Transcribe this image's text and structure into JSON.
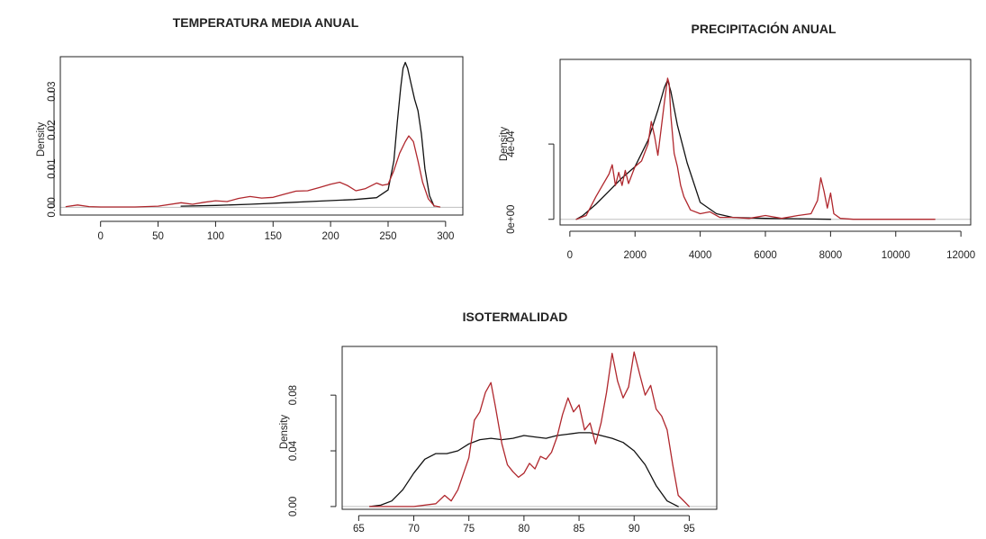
{
  "colors": {
    "black_series": "#111111",
    "red_series": "#b0272d",
    "zero_line": "#bfbfbf"
  },
  "chart_data": [
    {
      "type": "line",
      "title": "TEMPERATURA MEDIA ANUAL",
      "ylabel": "Density",
      "xlim": [
        -35,
        315
      ],
      "ylim": [
        -0.002,
        0.039
      ],
      "x_ticks": [
        0,
        50,
        100,
        150,
        200,
        250,
        300
      ],
      "x_tick_labels": [
        "0",
        "50",
        "100",
        "150",
        "200",
        "250",
        "300"
      ],
      "y_ticks": [
        0.0,
        0.01,
        0.02,
        0.03
      ],
      "y_tick_labels": [
        "0.00",
        "0.01",
        "0.02",
        "0.03"
      ],
      "series": [
        {
          "color": "#111111",
          "x": [
            70,
            100,
            130,
            160,
            190,
            220,
            240,
            250,
            255,
            258,
            261,
            263,
            265,
            267,
            270,
            273,
            276,
            279,
            282,
            286,
            290
          ],
          "y": [
            0.0003,
            0.0005,
            0.0008,
            0.0012,
            0.0016,
            0.002,
            0.0025,
            0.0045,
            0.012,
            0.022,
            0.031,
            0.036,
            0.0375,
            0.036,
            0.032,
            0.028,
            0.025,
            0.019,
            0.01,
            0.003,
            0.0003
          ]
        },
        {
          "color": "#b0272d",
          "x": [
            -30,
            -20,
            -10,
            0,
            30,
            50,
            70,
            80,
            90,
            100,
            110,
            120,
            130,
            140,
            150,
            160,
            170,
            180,
            190,
            200,
            208,
            215,
            222,
            230,
            240,
            245,
            250,
            255,
            260,
            265,
            268,
            272,
            276,
            280,
            285,
            290,
            295
          ],
          "y": [
            0.0002,
            0.0006,
            0.0002,
            0.0001,
            0.0001,
            0.0003,
            0.0012,
            0.0008,
            0.0013,
            0.0017,
            0.0015,
            0.0023,
            0.0028,
            0.0024,
            0.0026,
            0.0034,
            0.0042,
            0.0043,
            0.0051,
            0.006,
            0.0065,
            0.0056,
            0.0043,
            0.0048,
            0.0063,
            0.0057,
            0.006,
            0.0095,
            0.014,
            0.017,
            0.0185,
            0.017,
            0.012,
            0.0065,
            0.0022,
            0.0004,
            0.0001
          ]
        }
      ]
    },
    {
      "type": "line",
      "title": "PRECIPITACIÓN ANUAL",
      "ylabel": "Density",
      "xlim": [
        -300,
        12300
      ],
      "ylim": [
        -3e-05,
        0.00085
      ],
      "x_ticks": [
        0,
        2000,
        4000,
        6000,
        8000,
        10000,
        12000
      ],
      "x_tick_labels": [
        "0",
        "2000",
        "4000",
        "6000",
        "8000",
        "10000",
        "12000"
      ],
      "y_ticks": [
        0,
        0.0004
      ],
      "y_tick_labels": [
        "0e+00",
        "4e-04"
      ],
      "series": [
        {
          "color": "#111111",
          "x": [
            200,
            400,
            800,
            1200,
            1600,
            2000,
            2400,
            2700,
            2900,
            3000,
            3100,
            3300,
            3600,
            4000,
            4500,
            5000,
            6000,
            7000,
            8000
          ],
          "y": [
            0.0,
            2e-05,
            8e-05,
            0.00015,
            0.00022,
            0.00028,
            0.00042,
            0.00058,
            0.0007,
            0.00074,
            0.00068,
            0.0005,
            0.0003,
            9e-05,
            3e-05,
            1e-05,
            5e-06,
            3e-06,
            0.0
          ]
        },
        {
          "color": "#b0272d",
          "x": [
            200,
            500,
            800,
            1000,
            1200,
            1300,
            1400,
            1500,
            1600,
            1700,
            1800,
            2000,
            2200,
            2400,
            2500,
            2600,
            2700,
            2800,
            2900,
            3000,
            3050,
            3100,
            3200,
            3300,
            3400,
            3500,
            3700,
            4000,
            4300,
            4600,
            5000,
            5500,
            6000,
            6500,
            7000,
            7400,
            7600,
            7700,
            7800,
            7900,
            8000,
            8100,
            8300,
            8700,
            9500,
            11200
          ],
          "y": [
            0.0,
            2e-05,
            0.00012,
            0.00018,
            0.00024,
            0.00029,
            0.00018,
            0.00025,
            0.00018,
            0.00026,
            0.00019,
            0.00028,
            0.00031,
            0.0004,
            0.00052,
            0.00044,
            0.00034,
            0.00048,
            0.00062,
            0.00075,
            0.00072,
            0.00055,
            0.00035,
            0.00028,
            0.00018,
            0.00012,
            5e-05,
            3e-05,
            4e-05,
            1e-05,
            1e-05,
            5e-06,
            2e-05,
            5e-06,
            2e-05,
            3e-05,
            0.0001,
            0.00022,
            0.00015,
            6e-05,
            0.00014,
            3e-05,
            5e-06,
            0.0,
            0.0,
            0.0
          ]
        }
      ]
    },
    {
      "type": "line",
      "title": "ISOTERMALIDAD",
      "ylabel": "Density",
      "xlim": [
        63.5,
        97.5
      ],
      "ylim": [
        -0.002,
        0.115
      ],
      "x_ticks": [
        65,
        70,
        75,
        80,
        85,
        90,
        95
      ],
      "x_tick_labels": [
        "65",
        "70",
        "75",
        "80",
        "85",
        "90",
        "95"
      ],
      "y_ticks": [
        0.0,
        0.04,
        0.08
      ],
      "y_tick_labels": [
        "0.00",
        "0.04",
        "0.08"
      ],
      "series": [
        {
          "color": "#111111",
          "x": [
            66,
            67,
            68,
            69,
            70,
            71,
            72,
            73,
            74,
            75,
            76,
            77,
            78,
            79,
            80,
            81,
            82,
            83,
            84,
            85,
            86,
            87,
            88,
            89,
            90,
            91,
            92,
            93,
            94
          ],
          "y": [
            0.0,
            0.001,
            0.004,
            0.012,
            0.024,
            0.034,
            0.038,
            0.038,
            0.04,
            0.045,
            0.048,
            0.049,
            0.048,
            0.049,
            0.051,
            0.05,
            0.049,
            0.051,
            0.052,
            0.053,
            0.053,
            0.051,
            0.049,
            0.046,
            0.04,
            0.03,
            0.015,
            0.004,
            0.0
          ]
        },
        {
          "color": "#b0272d",
          "x": [
            66,
            70,
            72,
            72.8,
            73.4,
            74,
            75,
            75.5,
            76,
            76.5,
            77,
            77.4,
            78,
            78.5,
            79,
            79.5,
            80,
            80.5,
            81,
            81.5,
            82,
            82.5,
            83,
            83.5,
            84,
            84.5,
            85,
            85.5,
            86,
            86.5,
            87,
            87.5,
            88,
            88.5,
            89,
            89.5,
            90,
            90.5,
            91,
            91.5,
            92,
            92.5,
            93,
            93.5,
            94,
            95
          ],
          "y": [
            0.0,
            0.0,
            0.002,
            0.008,
            0.004,
            0.012,
            0.035,
            0.062,
            0.068,
            0.082,
            0.089,
            0.072,
            0.045,
            0.03,
            0.025,
            0.021,
            0.024,
            0.031,
            0.027,
            0.036,
            0.034,
            0.039,
            0.05,
            0.066,
            0.078,
            0.068,
            0.073,
            0.055,
            0.06,
            0.045,
            0.06,
            0.082,
            0.11,
            0.09,
            0.078,
            0.086,
            0.111,
            0.095,
            0.08,
            0.087,
            0.07,
            0.065,
            0.055,
            0.03,
            0.008,
            0.0
          ]
        }
      ]
    }
  ]
}
